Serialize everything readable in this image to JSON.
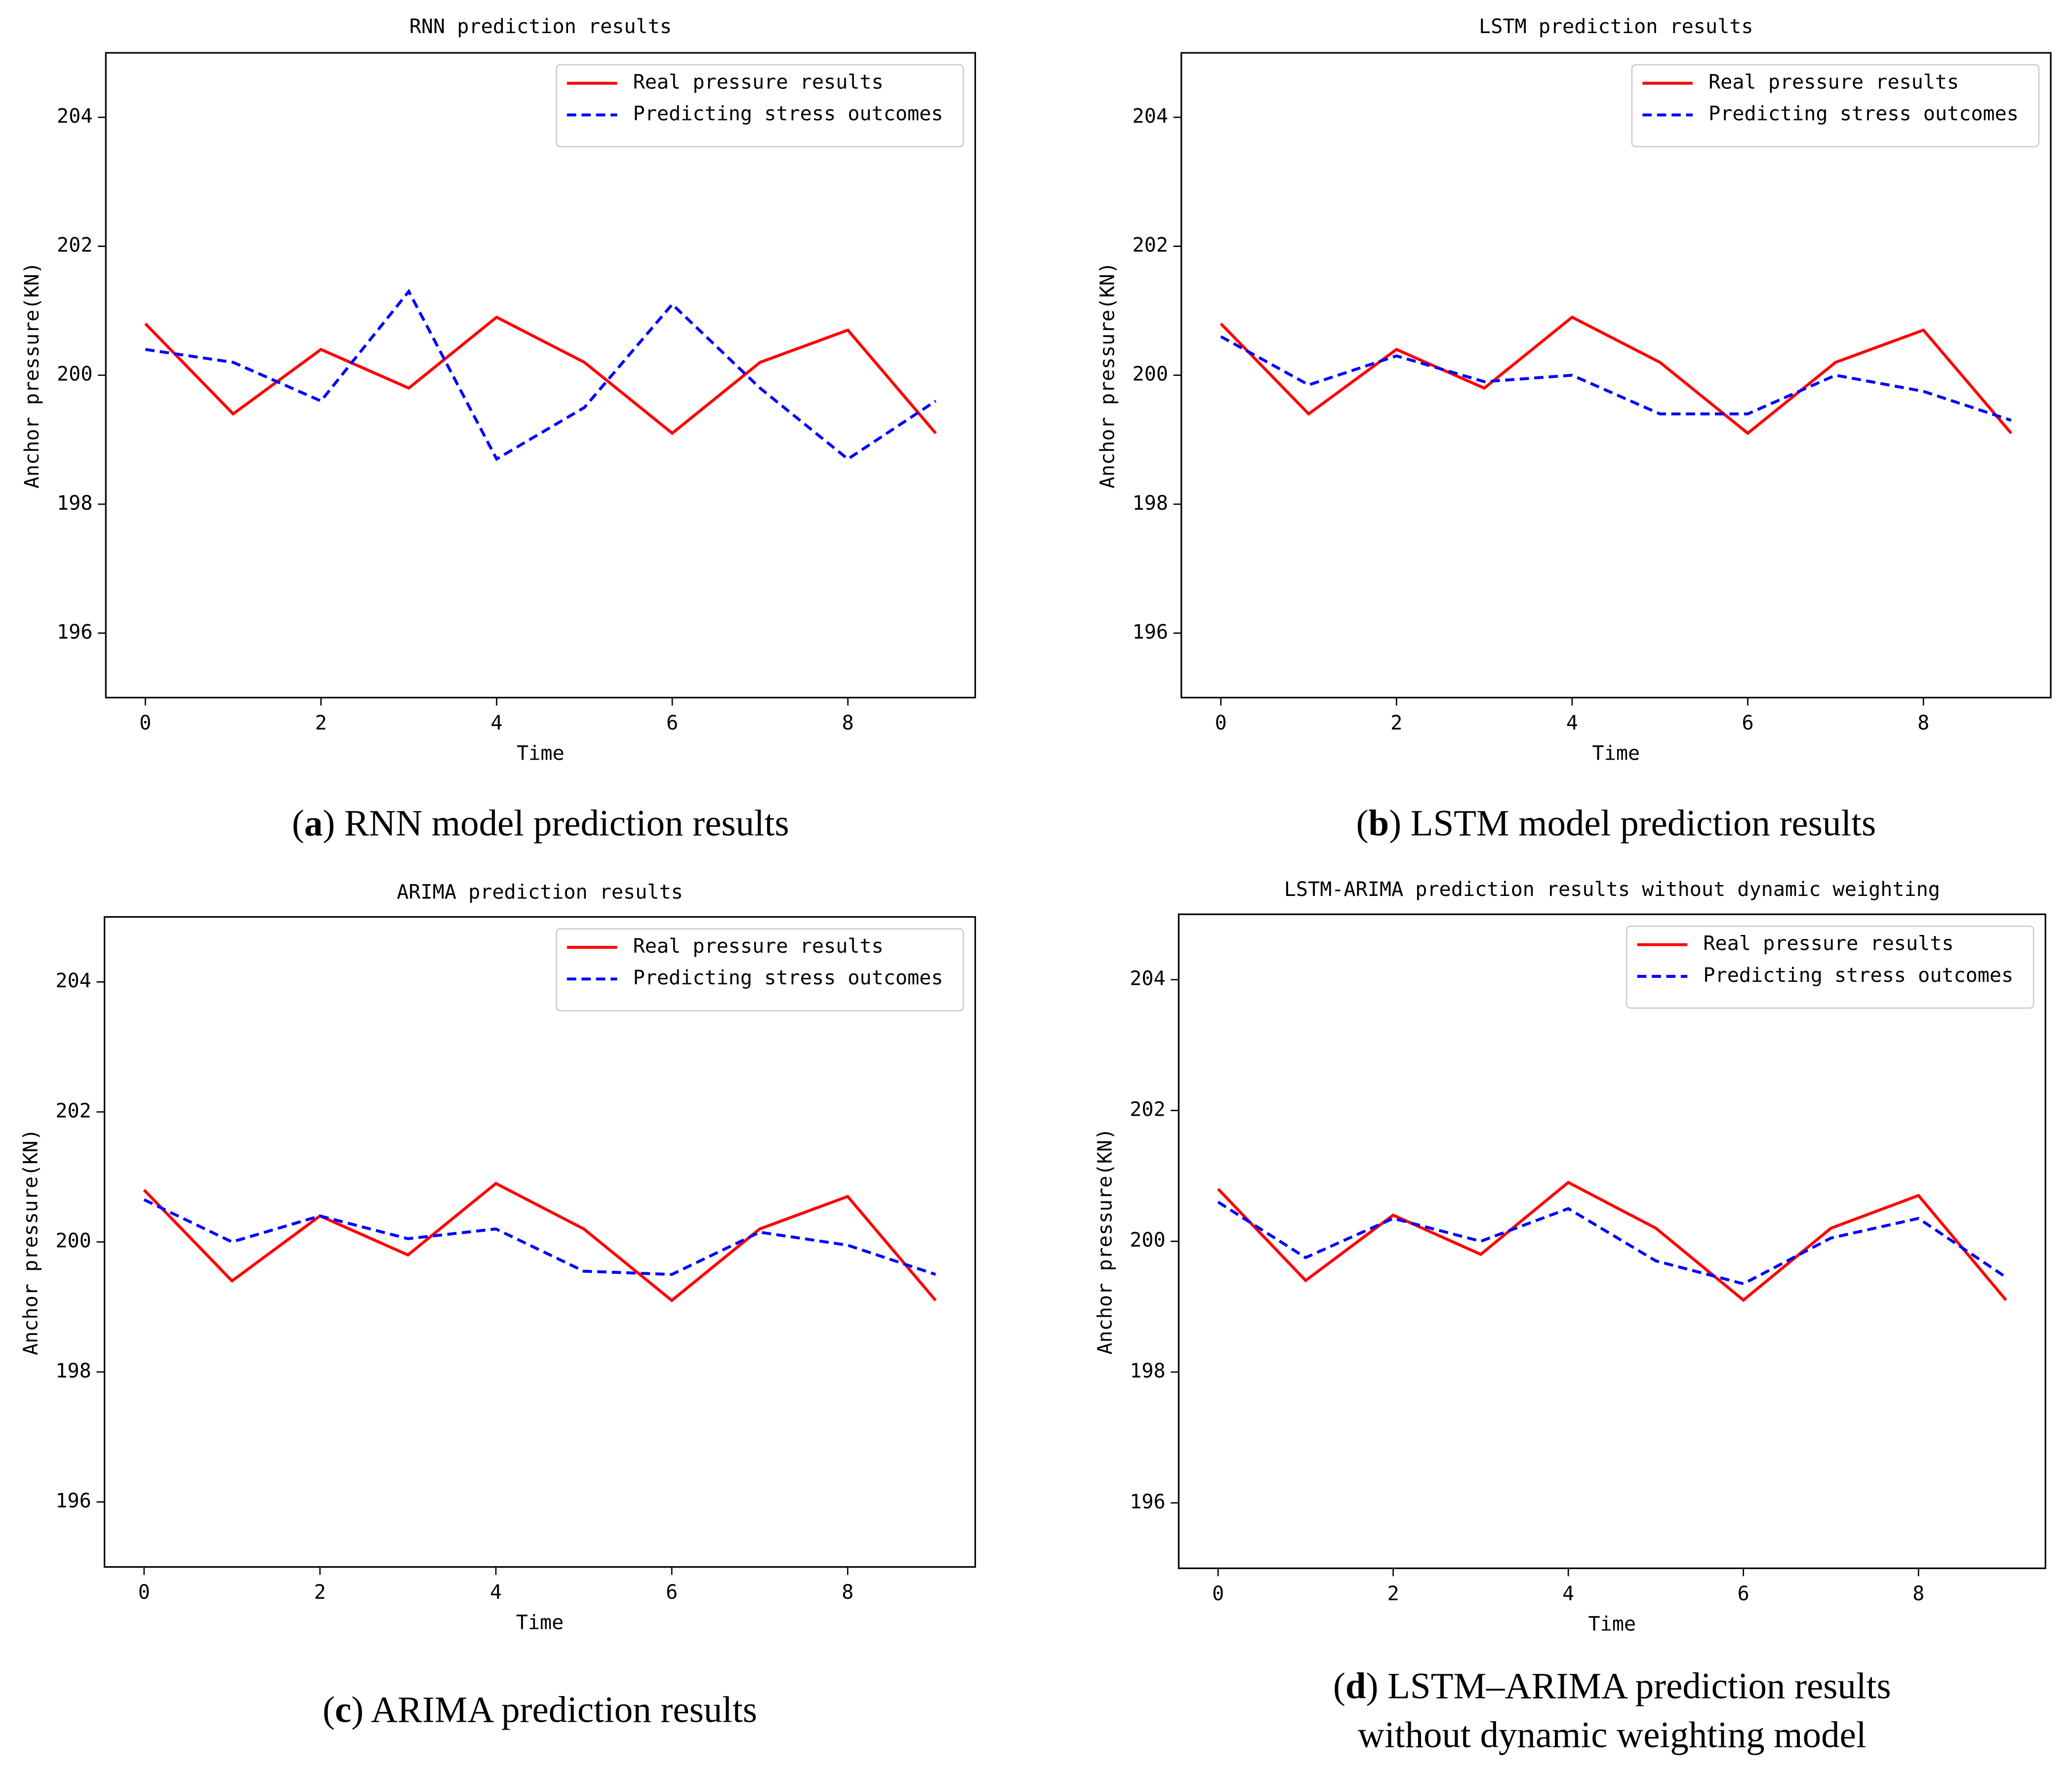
{
  "chart_data": [
    {
      "type": "line",
      "title": "RNN prediction results",
      "xlabel": "Time",
      "ylabel": "Anchor pressure(KN)",
      "x": [
        0,
        1,
        2,
        3,
        4,
        5,
        6,
        7,
        8,
        9
      ],
      "series": [
        {
          "name": "Real pressure results",
          "color": "#ff0000",
          "linestyle": "solid",
          "values": [
            200.8,
            199.4,
            200.4,
            199.8,
            200.9,
            200.2,
            199.1,
            200.2,
            200.7,
            199.1
          ]
        },
        {
          "name": "Predicting stress outcomes",
          "color": "#0000ff",
          "linestyle": "dashed",
          "values": [
            200.4,
            200.2,
            199.6,
            201.3,
            198.7,
            199.5,
            201.1,
            199.8,
            198.7,
            199.6
          ]
        }
      ],
      "xlim": [
        -0.45,
        9.45
      ],
      "xticks": [
        0,
        2,
        4,
        6,
        8
      ],
      "ylim": [
        195,
        205
      ],
      "yticks": [
        196,
        198,
        200,
        202,
        204
      ],
      "grid": false,
      "legend": "upper right",
      "caption": [
        [
          "(",
          "a",
          ") RNN model prediction results"
        ]
      ]
    },
    {
      "type": "line",
      "title": "LSTM prediction results",
      "xlabel": "Time",
      "ylabel": "Anchor pressure(KN)",
      "x": [
        0,
        1,
        2,
        3,
        4,
        5,
        6,
        7,
        8,
        9
      ],
      "series": [
        {
          "name": "Real pressure results",
          "color": "#ff0000",
          "linestyle": "solid",
          "values": [
            200.8,
            199.4,
            200.4,
            199.8,
            200.9,
            200.2,
            199.1,
            200.2,
            200.7,
            199.1
          ]
        },
        {
          "name": "Predicting stress outcomes",
          "color": "#0000ff",
          "linestyle": "dashed",
          "values": [
            200.6,
            199.85,
            200.3,
            199.9,
            200.0,
            199.4,
            199.4,
            200.0,
            199.75,
            199.3
          ]
        }
      ],
      "xlim": [
        -0.45,
        9.45
      ],
      "xticks": [
        0,
        2,
        4,
        6,
        8
      ],
      "ylim": [
        195,
        205
      ],
      "yticks": [
        196,
        198,
        200,
        202,
        204
      ],
      "grid": false,
      "legend": "upper right",
      "caption": [
        [
          "(",
          "b",
          ") LSTM model prediction results"
        ]
      ]
    },
    {
      "type": "line",
      "title": "ARIMA prediction results",
      "xlabel": "Time",
      "ylabel": "Anchor pressure(KN)",
      "x": [
        0,
        1,
        2,
        3,
        4,
        5,
        6,
        7,
        8,
        9
      ],
      "series": [
        {
          "name": "Real pressure results",
          "color": "#ff0000",
          "linestyle": "solid",
          "values": [
            200.8,
            199.4,
            200.4,
            199.8,
            200.9,
            200.2,
            199.1,
            200.2,
            200.7,
            199.1
          ]
        },
        {
          "name": "Predicting stress outcomes",
          "color": "#0000ff",
          "linestyle": "dashed",
          "values": [
            200.65,
            200.0,
            200.4,
            200.05,
            200.2,
            199.55,
            199.5,
            200.15,
            199.95,
            199.5
          ]
        }
      ],
      "xlim": [
        -0.45,
        9.45
      ],
      "xticks": [
        0,
        2,
        4,
        6,
        8
      ],
      "ylim": [
        195,
        205
      ],
      "yticks": [
        196,
        198,
        200,
        202,
        204
      ],
      "grid": false,
      "legend": "upper right",
      "caption": [
        [
          "(",
          "c",
          ") ARIMA prediction results"
        ]
      ]
    },
    {
      "type": "line",
      "title": "LSTM-ARIMA prediction results without dynamic weighting",
      "xlabel": "Time",
      "ylabel": "Anchor pressure(KN)",
      "x": [
        0,
        1,
        2,
        3,
        4,
        5,
        6,
        7,
        8,
        9
      ],
      "series": [
        {
          "name": "Real pressure results",
          "color": "#ff0000",
          "linestyle": "solid",
          "values": [
            200.8,
            199.4,
            200.4,
            199.8,
            200.9,
            200.2,
            199.1,
            200.2,
            200.7,
            199.1
          ]
        },
        {
          "name": "Predicting stress outcomes",
          "color": "#0000ff",
          "linestyle": "dashed",
          "values": [
            200.6,
            199.75,
            200.35,
            200.0,
            200.5,
            199.7,
            199.35,
            200.05,
            200.35,
            199.45
          ]
        }
      ],
      "xlim": [
        -0.45,
        9.45
      ],
      "xticks": [
        0,
        2,
        4,
        6,
        8
      ],
      "ylim": [
        195,
        205
      ],
      "yticks": [
        196,
        198,
        200,
        202,
        204
      ],
      "grid": false,
      "legend": "upper right",
      "caption": [
        [
          "(",
          "d",
          ") LSTM–ARIMA prediction results"
        ],
        [
          "without dynamic weighting model"
        ]
      ]
    }
  ]
}
